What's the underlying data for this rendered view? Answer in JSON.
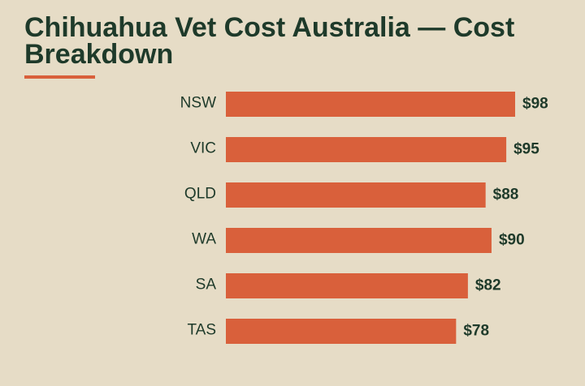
{
  "chart_data": {
    "type": "bar",
    "orientation": "horizontal",
    "title": "Chihuahua Vet Cost Australia — Cost Breakdown",
    "categories": [
      "NSW",
      "VIC",
      "QLD",
      "WA",
      "SA",
      "TAS"
    ],
    "values": [
      98,
      95,
      88,
      90,
      82,
      78
    ],
    "value_labels": [
      "$98",
      "$95",
      "$88",
      "$90",
      "$82",
      "$78"
    ],
    "color": "#d9603b"
  }
}
